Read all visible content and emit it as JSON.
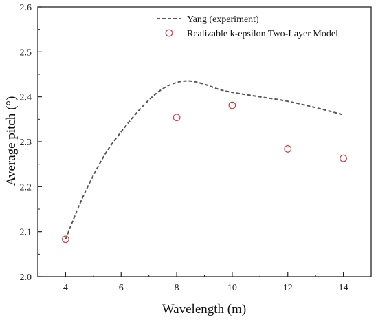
{
  "chart_data": {
    "type": "line",
    "xlabel": "Wavelength (m)",
    "ylabel": "Average pitch (°)",
    "xlim": [
      3,
      15
    ],
    "ylim": [
      2.0,
      2.6
    ],
    "xticks": [
      4,
      6,
      8,
      10,
      12,
      14
    ],
    "yticks": [
      2.0,
      2.1,
      2.2,
      2.3,
      2.4,
      2.5,
      2.6
    ],
    "legend_position": "top-right",
    "grid": false,
    "series": [
      {
        "name": "Yang (experiment)",
        "type": "line",
        "style": "dashed",
        "color": "#555555",
        "x": [
          4,
          4.5,
          5,
          5.5,
          6,
          6.5,
          7,
          7.5,
          8,
          8.5,
          9,
          9.5,
          10,
          11,
          12,
          13,
          14
        ],
        "y": [
          2.083,
          2.16,
          2.225,
          2.28,
          2.322,
          2.36,
          2.393,
          2.418,
          2.432,
          2.435,
          2.428,
          2.417,
          2.41,
          2.4,
          2.39,
          2.376,
          2.36
        ]
      },
      {
        "name": "Realizable k-epsilon Two-Layer Model",
        "type": "scatter",
        "marker": "open-circle",
        "color": "#e0393b",
        "x": [
          4,
          8,
          10,
          12,
          14
        ],
        "y": [
          2.083,
          2.354,
          2.381,
          2.284,
          2.263
        ]
      }
    ]
  }
}
